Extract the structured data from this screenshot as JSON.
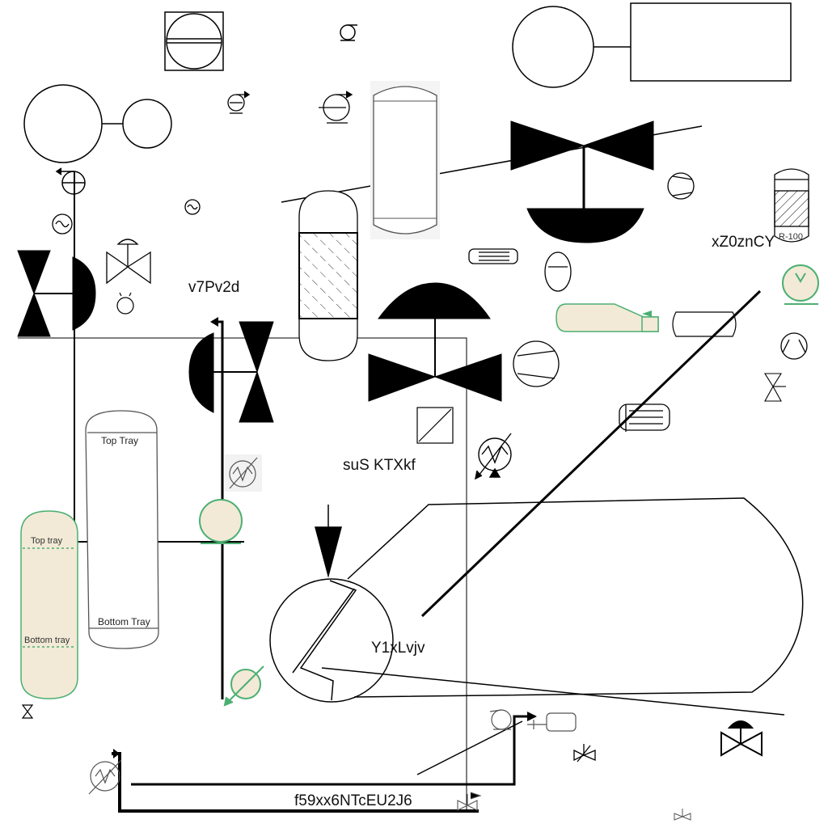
{
  "labels": {
    "tag_1": "v7Pv2d",
    "tag_2": "suS KTXkf",
    "tag_3": "xZ0znCY",
    "tag_4": "Y1xLvjv",
    "tag_5": "f59xx6NTcEU2J6"
  },
  "column_a": {
    "top": "Top Tray",
    "bottom": "Bottom Tray"
  },
  "column_b": {
    "top": "Top tray",
    "bottom": "Bottom tray"
  },
  "reactor": {
    "tag": "R-100"
  },
  "colors": {
    "line": "#000000",
    "green": "#4caf72",
    "fill": "#f2ead6",
    "gray": "#bdbdbd"
  }
}
